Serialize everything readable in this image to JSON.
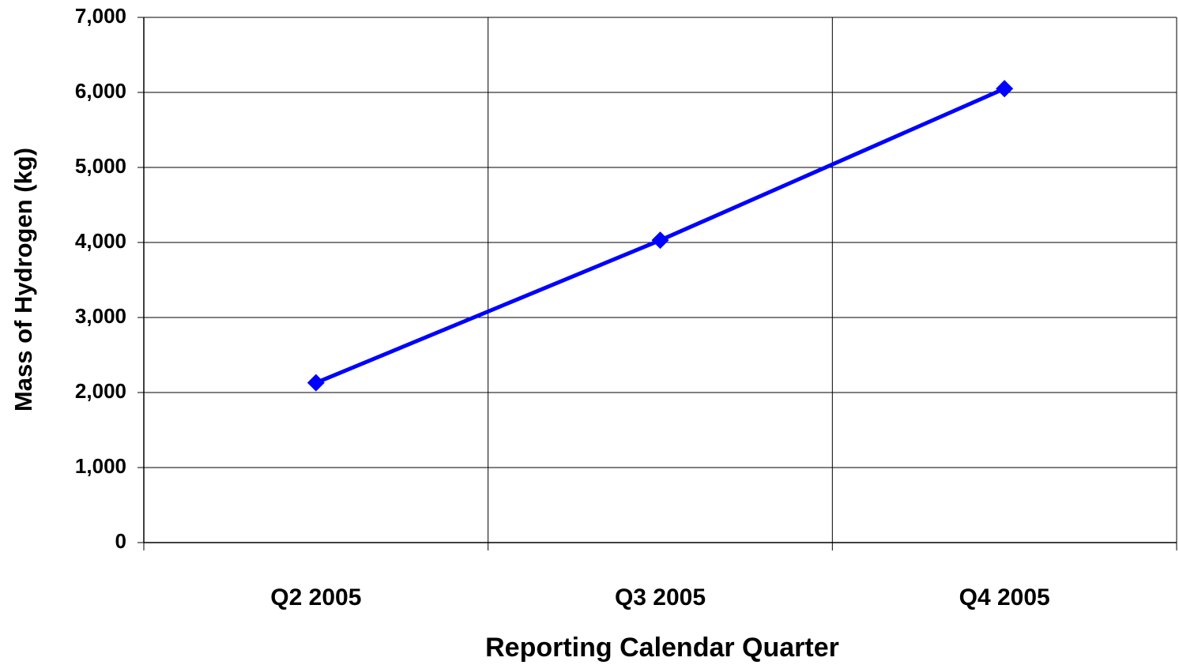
{
  "chart_data": {
    "type": "line",
    "x_label": "Reporting Calendar Quarter",
    "y_label": "Mass of Hydrogen (kg)",
    "categories": [
      "Q2 2005",
      "Q3 2005",
      "Q4 2005"
    ],
    "values": [
      2130,
      4030,
      6050
    ],
    "color": "#0000ff",
    "ylim": [
      0,
      7000
    ],
    "yticks": [
      0,
      {
        "value": 1000,
        "label": "1,000"
      },
      {
        "value": 2000,
        "label": "2,000"
      },
      {
        "value": 3000,
        "label": "3,000"
      },
      {
        "value": 4000,
        "label": "4,000"
      },
      {
        "value": 5000,
        "label": "5,000"
      },
      {
        "value": 6000,
        "label": "6,000"
      },
      {
        "value": 7000,
        "label": "7,000"
      }
    ],
    "grid": true
  }
}
